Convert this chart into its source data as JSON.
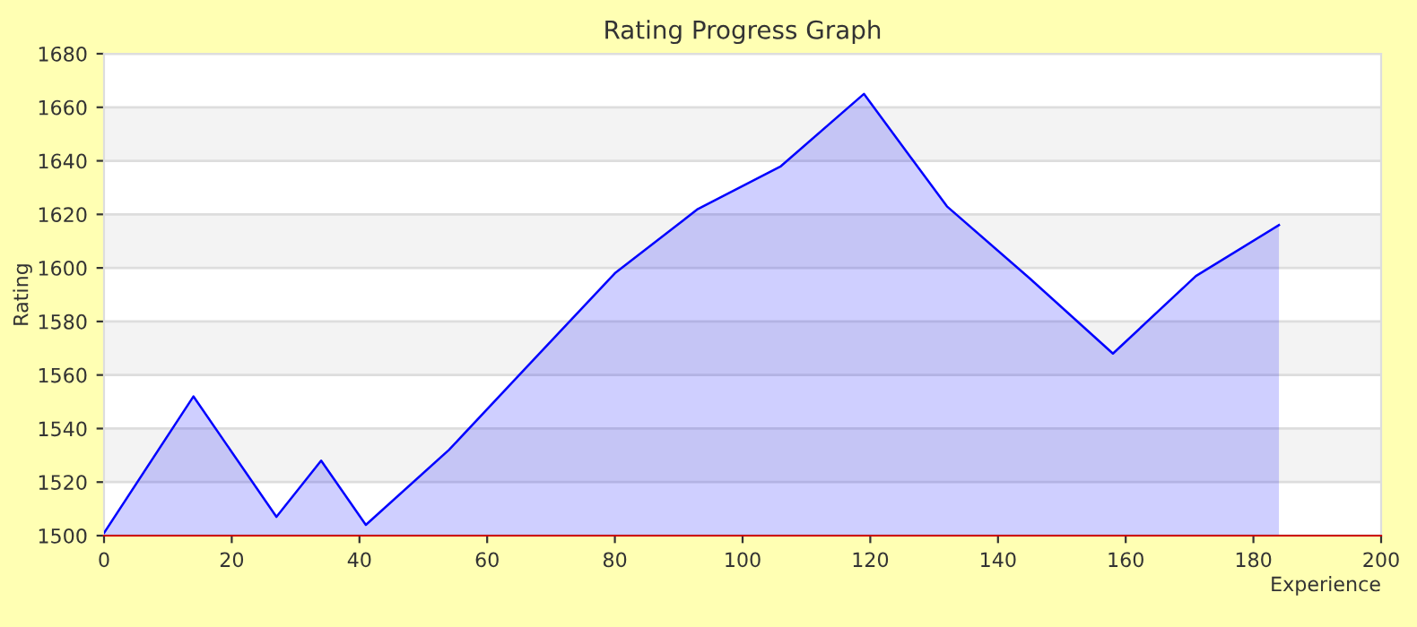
{
  "chart_data": {
    "type": "area",
    "title": "Rating Progress Graph",
    "xlabel": "Experience",
    "ylabel": "Rating",
    "series": [
      {
        "color": "#0000ff",
        "x": [
          0,
          14,
          27,
          34,
          41,
          54,
          67,
          80,
          93,
          106,
          119,
          132,
          145,
          158,
          171,
          184
        ],
        "values": [
          1501,
          1552,
          1507,
          1528,
          1504,
          1532,
          1565,
          1598,
          1622,
          1638,
          1665,
          1623,
          1596,
          1568,
          1597,
          1616
        ]
      }
    ],
    "xlim": [
      0,
      200
    ],
    "xticks": [
      0,
      20,
      40,
      60,
      80,
      100,
      120,
      140,
      160,
      180,
      200
    ],
    "ylim": [
      1500,
      1680
    ],
    "yticks": [
      1500,
      1520,
      1540,
      1560,
      1580,
      1600,
      1620,
      1640,
      1660,
      1680
    ],
    "grid": "y",
    "legend": false
  }
}
